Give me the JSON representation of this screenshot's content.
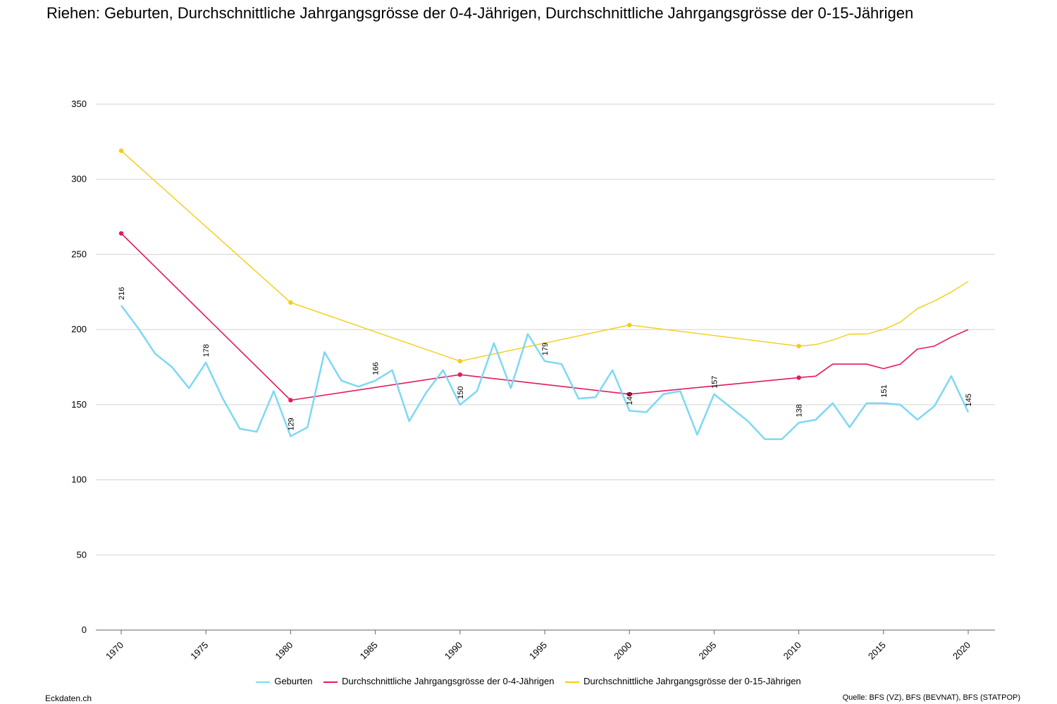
{
  "title": "Riehen: Geburten, Durchschnittliche Jahrgangsgrösse der 0-4-Jährigen, Durchschnittliche Jahrgangsgrösse der 0-15-Jährigen",
  "footer": {
    "brand": "Eckdaten.ch",
    "source": "Quelle: BFS (VZ), BFS (BEVNAT), BFS (STATPOP)"
  },
  "chart_data": {
    "type": "line",
    "grid": true,
    "legend_position": "bottom",
    "ylim": [
      0,
      350
    ],
    "yticks": [
      "0",
      "50",
      "100",
      "150",
      "200",
      "250",
      "300",
      "350"
    ],
    "xlim": [
      1970,
      2020
    ],
    "xticks": [
      "1970",
      "1975",
      "1980",
      "1985",
      "1990",
      "1995",
      "2000",
      "2005",
      "2010",
      "2015",
      "2020"
    ],
    "series": [
      {
        "name": "Geburten",
        "color": "#7dd8f4",
        "x": [
          1970,
          1971,
          1972,
          1973,
          1974,
          1975,
          1976,
          1977,
          1978,
          1979,
          1980,
          1981,
          1982,
          1983,
          1984,
          1985,
          1986,
          1987,
          1988,
          1989,
          1990,
          1991,
          1992,
          1993,
          1994,
          1995,
          1996,
          1997,
          1998,
          1999,
          2000,
          2001,
          2002,
          2003,
          2004,
          2005,
          2006,
          2007,
          2008,
          2009,
          2010,
          2011,
          2012,
          2013,
          2014,
          2015,
          2016,
          2017,
          2018,
          2019,
          2020
        ],
        "y": [
          216,
          201,
          184,
          175,
          161,
          178,
          154,
          134,
          132,
          159,
          129,
          135,
          185,
          166,
          162,
          166,
          173,
          139,
          158,
          173,
          150,
          159,
          191,
          161,
          197,
          179,
          177,
          154,
          155,
          173,
          146,
          145,
          157,
          159,
          130,
          157,
          148,
          139,
          127,
          127,
          138,
          140,
          151,
          135,
          151,
          151,
          150,
          140,
          149,
          169,
          145
        ],
        "labels": [
          {
            "x": 1970,
            "text": "216"
          },
          {
            "x": 1975,
            "text": "178"
          },
          {
            "x": 1980,
            "text": "129"
          },
          {
            "x": 1985,
            "text": "166"
          },
          {
            "x": 1990,
            "text": "150"
          },
          {
            "x": 1995,
            "text": "179"
          },
          {
            "x": 2000,
            "text": "146"
          },
          {
            "x": 2005,
            "text": "157"
          },
          {
            "x": 2010,
            "text": "138"
          },
          {
            "x": 2015,
            "text": "151"
          },
          {
            "x": 2020,
            "text": "145"
          }
        ]
      },
      {
        "name": "Durchschnittliche Jahrgangsgrösse der 0-4-Jährigen",
        "color": "#e5195e",
        "x": [
          1970,
          1980,
          1990,
          2000,
          2010,
          2011,
          2012,
          2013,
          2014,
          2015,
          2016,
          2017,
          2018,
          2019,
          2020
        ],
        "y": [
          264,
          153,
          170,
          157,
          168,
          169,
          177,
          177,
          177,
          174,
          177,
          187,
          189,
          195,
          200
        ],
        "markers": [
          1970,
          1980,
          1990,
          2000,
          2010
        ]
      },
      {
        "name": "Durchschnittliche Jahrgangsgrösse der 0-15-Jährigen",
        "color": "#f5cc14",
        "x": [
          1970,
          1980,
          1990,
          2000,
          2010,
          2011,
          2012,
          2013,
          2014,
          2015,
          2016,
          2017,
          2018,
          2019,
          2020
        ],
        "y": [
          319,
          218,
          179,
          203,
          189,
          190,
          193,
          197,
          197,
          200,
          205,
          214,
          219,
          225,
          232
        ],
        "markers": [
          1970,
          1980,
          1990,
          2000,
          2010
        ]
      }
    ]
  }
}
